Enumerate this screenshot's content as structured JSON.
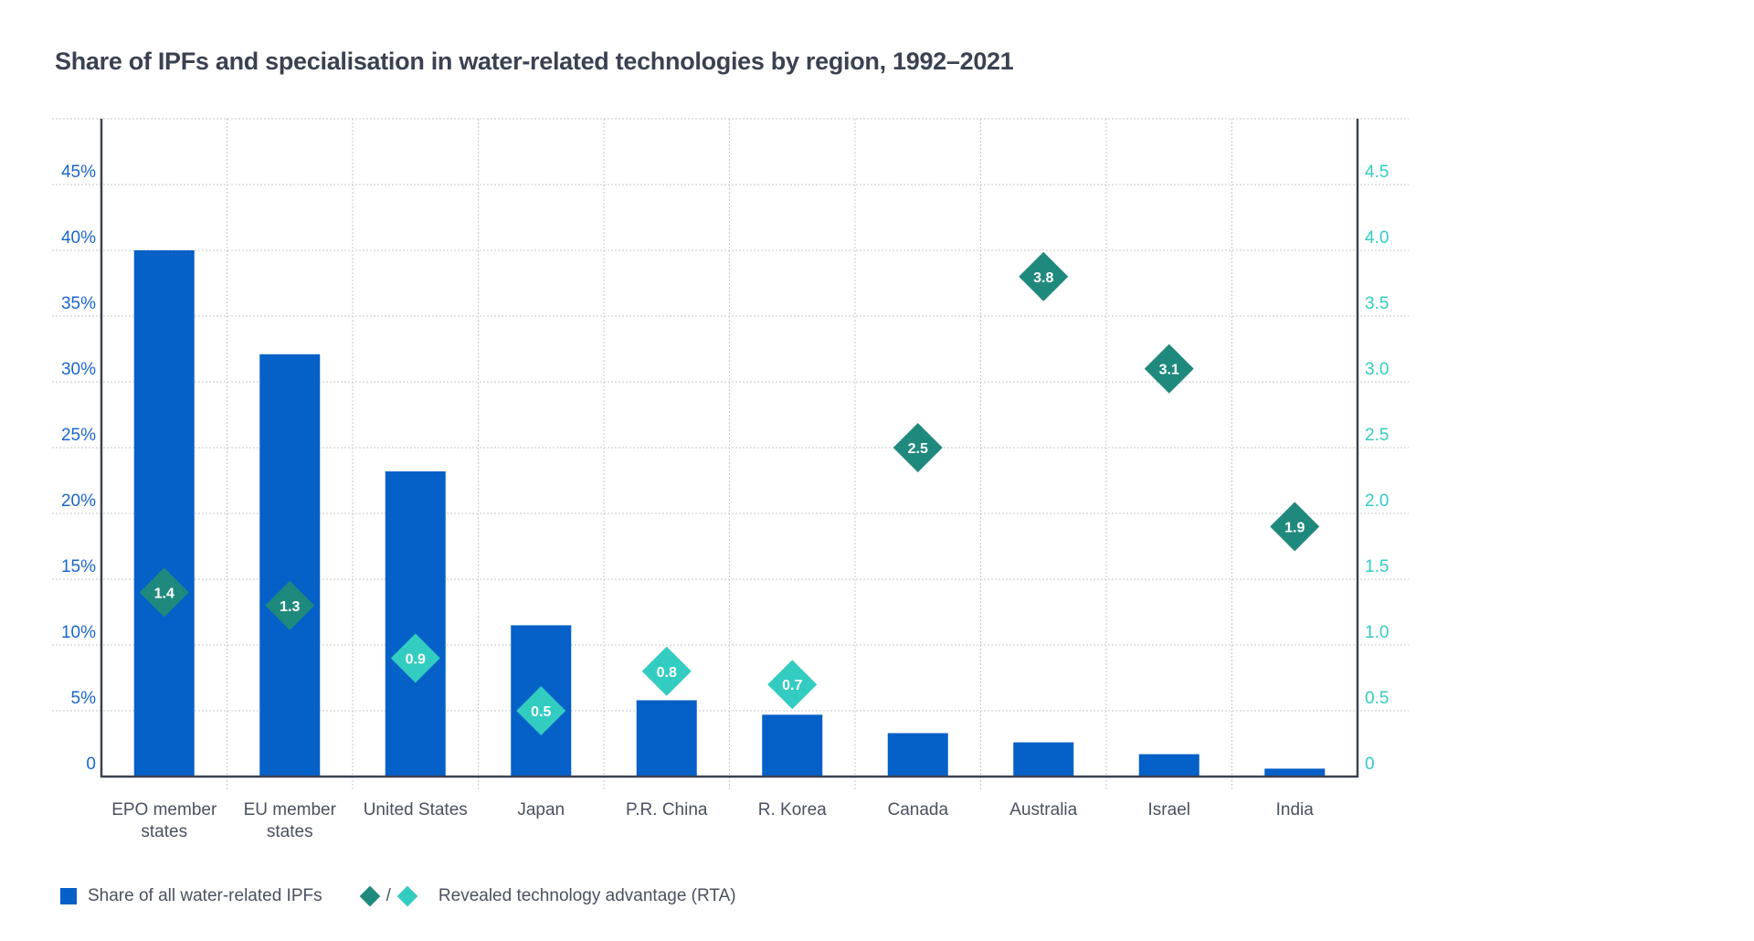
{
  "chart_data": {
    "type": "bar",
    "title": "Share of IPFs and specialisation in water-related technologies by region, 1992–2021",
    "categories": [
      "EPO member states",
      "EU member states",
      "United States",
      "Japan",
      "P.R. China",
      "R. Korea",
      "Canada",
      "Australia",
      "Israel",
      "India"
    ],
    "category_lines": [
      [
        "EPO member",
        "states"
      ],
      [
        "EU member",
        "states"
      ],
      [
        "United States"
      ],
      [
        "Japan"
      ],
      [
        "P.R. China"
      ],
      [
        "R. Korea"
      ],
      [
        "Canada"
      ],
      [
        "Australia"
      ],
      [
        "Israel"
      ],
      [
        "India"
      ]
    ],
    "series": [
      {
        "name": "Share of all water-related IPFs",
        "type": "bar",
        "axis": "left",
        "color": "#0560c8",
        "values": [
          40.0,
          32.1,
          23.2,
          11.5,
          5.8,
          4.7,
          3.3,
          2.6,
          1.7,
          0.6
        ]
      },
      {
        "name": "Revealed technology advantage (RTA)",
        "type": "scatter",
        "marker": "diamond",
        "axis": "right",
        "values": [
          1.4,
          1.3,
          0.9,
          0.5,
          0.8,
          0.7,
          2.5,
          3.8,
          3.1,
          1.9
        ],
        "labels": [
          "1.4",
          "1.3",
          "0.9",
          "0.5",
          "0.8",
          "0.7",
          "2.5",
          "3.8",
          "3.1",
          "1.9"
        ],
        "colors": {
          "above_1": "#20897e",
          "below_1": "#33ccc0"
        }
      }
    ],
    "y_left": {
      "label": "",
      "ylim": [
        0,
        50
      ],
      "ticks": [
        0,
        5,
        10,
        15,
        20,
        25,
        30,
        35,
        40,
        45
      ],
      "tick_labels": [
        "0",
        "5%",
        "10%",
        "15%",
        "20%",
        "25%",
        "30%",
        "35%",
        "40%",
        "45%"
      ]
    },
    "y_right": {
      "label": "",
      "ylim": [
        0,
        5
      ],
      "ticks": [
        0,
        0.5,
        1,
        1.5,
        2,
        2.5,
        3,
        3.5,
        4,
        4.5
      ],
      "tick_labels": [
        "0",
        "0.5",
        "1.0",
        "1.5",
        "2.0",
        "2.5",
        "3.0",
        "3.5",
        "4.0",
        "4.5"
      ]
    },
    "grid": true,
    "legend_position": "bottom-left"
  },
  "legend": {
    "bar_label": "Share of all water-related IPFs",
    "separator": "/",
    "rta_label": "Revealed technology advantage (RTA)"
  }
}
